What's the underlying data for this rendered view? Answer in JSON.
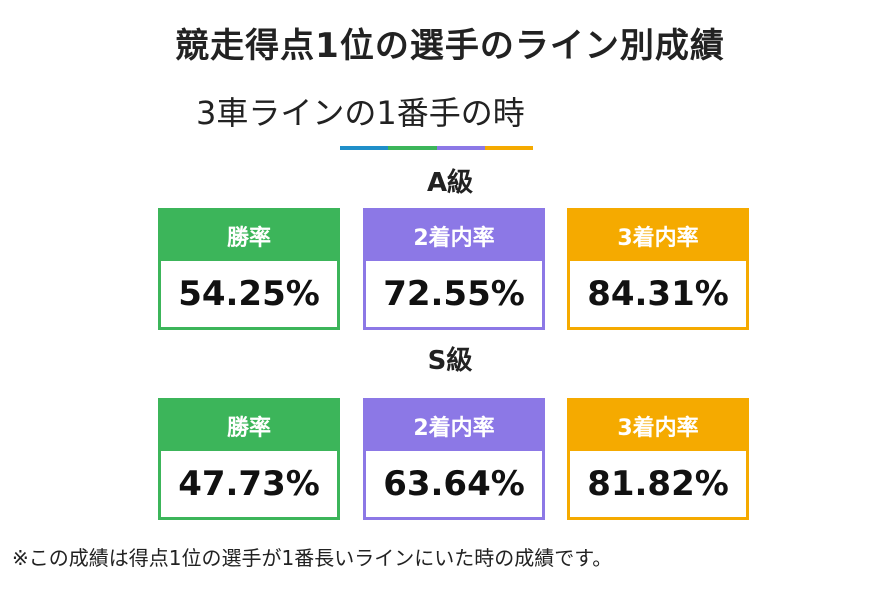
{
  "header": {
    "title": "競走得点1位の選手のライン別成績",
    "subtitle": "3車ラインの1番手の時"
  },
  "sections": [
    {
      "grade": "A級",
      "cards": [
        {
          "label": "勝率",
          "value": "54.25%"
        },
        {
          "label": "2着内率",
          "value": "72.55%"
        },
        {
          "label": "3着内率",
          "value": "84.31%"
        }
      ]
    },
    {
      "grade": "S級",
      "cards": [
        {
          "label": "勝率",
          "value": "47.73%"
        },
        {
          "label": "2着内率",
          "value": "63.64%"
        },
        {
          "label": "3着内率",
          "value": "81.82%"
        }
      ]
    }
  ],
  "footnote": "※この成績は得点1位の選手が1番長いラインにいた時の成績です。"
}
